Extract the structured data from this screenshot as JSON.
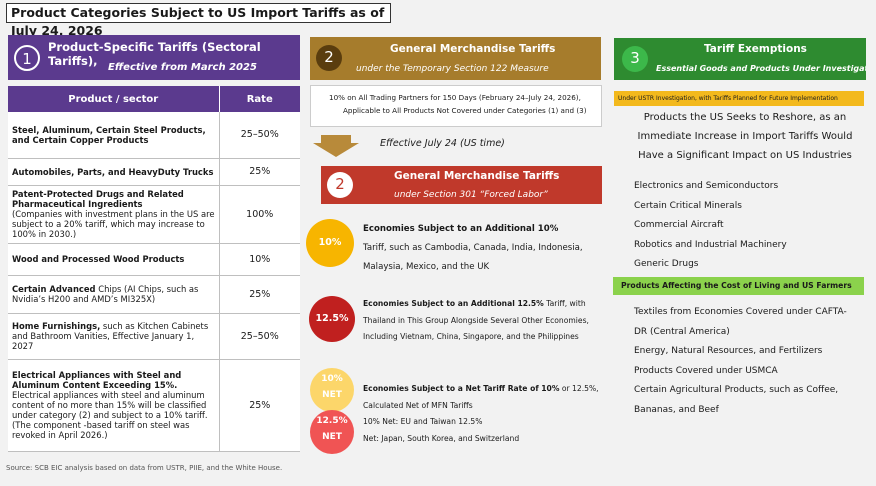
{
  "page_title": "Product Categories Subject to US Import Tariffs as of July 24, 2026",
  "section1": {
    "number": "1",
    "title": "Product-Specific Tariffs (Sectoral Tariffs),",
    "subtitle": "Effective from March 2025",
    "table_headers": [
      "Product / sector",
      "Rate"
    ],
    "rows": [
      {
        "bold": "Steel, Aluminum, Certain Steel Products, and Certain Copper Products",
        "detail": "",
        "rate": "25–50%"
      },
      {
        "bold": "Automobiles, Parts, and HeavyDuty Trucks",
        "detail": "",
        "rate": "25%"
      },
      {
        "bold": "Patent-Protected Drugs and Related Pharmaceutical Ingredients",
        "detail": "(Companies with investment plans in the US are subject to a 20% tariff, which may increase to 100% in 2030.)",
        "rate": "100%"
      },
      {
        "bold": "Wood and Processed Wood Products",
        "detail": "",
        "rate": "10%"
      },
      {
        "bold": "Certain Advanced",
        "detail": " Chips (AI Chips, such as Nvidia’s H200 and AMD’s MI325X)",
        "rate": "25%"
      },
      {
        "bold": "Home Furnishings,",
        "detail": " such as Kitchen Cabinets and Bathroom Vanities, Effective January 1, 2027",
        "rate": "25–50%"
      },
      {
        "bold": "Electrical Appliances with Steel and Aluminum Content Exceeding 15%.",
        "detail": "Electrical appliances with steel and aluminum content of no more than 15% will be classified under category (2) and subject to a 10% tariff. (The component -based tariff on steel was revoked in April 2026.)",
        "rate": "25%"
      }
    ]
  },
  "section2": {
    "number": "2",
    "title": "General Merchandise Tariffs",
    "subtitle": "under the Temporary Section 122 Measure",
    "box_line1": "10% on All Trading Partners for 150 Days (February 24–July 24, 2026),",
    "box_line2": "Applicable to All Products Not Covered under Categories (1) and (3)",
    "effective": "Effective July 24 (US time)"
  },
  "section2b": {
    "number": "2",
    "title": "General Merchandise Tariffs",
    "subtitle": "under Section 301 “Forced Labor”",
    "tiers": [
      {
        "badge": "10%",
        "color": "#f7b500",
        "head": "Economies Subject to an Additional 10%",
        "body": "Tariff, such as Cambodia, Canada, India, Indonesia, Malaysia, Mexico, and the UK"
      },
      {
        "badge": "12.5%",
        "color": "#c0201f",
        "head": "Economies Subject to an Additional 12.5%",
        "body": " Tariff, with Thailand in This Group Alongside Several Other Economies, Including Vietnam, China, Singapore, and the Philippines"
      },
      {
        "badge": "10%",
        "badge2": "NET",
        "badge3": "12.5%",
        "badge4": "NET",
        "color": "#fcd66a",
        "color2": "#f05454",
        "head": "Economies Subject to a Net Tariff Rate of 10%",
        "head_tail": " or 12.5%, Calculated Net of MFN Tariffs",
        "line2": "10% Net: EU and Taiwan 12.5%",
        "line3": "Net: Japan, South Korea, and Switzerland"
      }
    ]
  },
  "section3": {
    "number": "3",
    "title": "Tariff Exemptions",
    "subtitle": "Essential Goods and Products Under Investigation",
    "ustr_note": "Under USTR Investigation, with Tariffs Planned for Future Implementation",
    "reshore": [
      "Products the US Seeks to Reshore, as an",
      "Immediate Increase in Import Tariffs Would",
      "Have a Significant Impact on US Industries"
    ],
    "reshore_items": [
      "Electronics and Semiconductors",
      "Certain Critical Minerals",
      "Commercial Aircraft",
      "Robotics and Industrial Machinery",
      "Generic Drugs"
    ],
    "living_cost_title": "Products Affecting the Cost of Living and US Farmers",
    "living_items": [
      "Textiles from Economies Covered under CAFTA-",
      "DR (Central America)",
      "Energy, Natural Resources, and Fertilizers",
      "Products Covered under USMCA",
      "Certain Agricultural Products, such as Coffee,",
      "Bananas, and Beef"
    ]
  },
  "source": "Source: SCB EIC analysis based on data from USTR, PIIE, and the White House."
}
